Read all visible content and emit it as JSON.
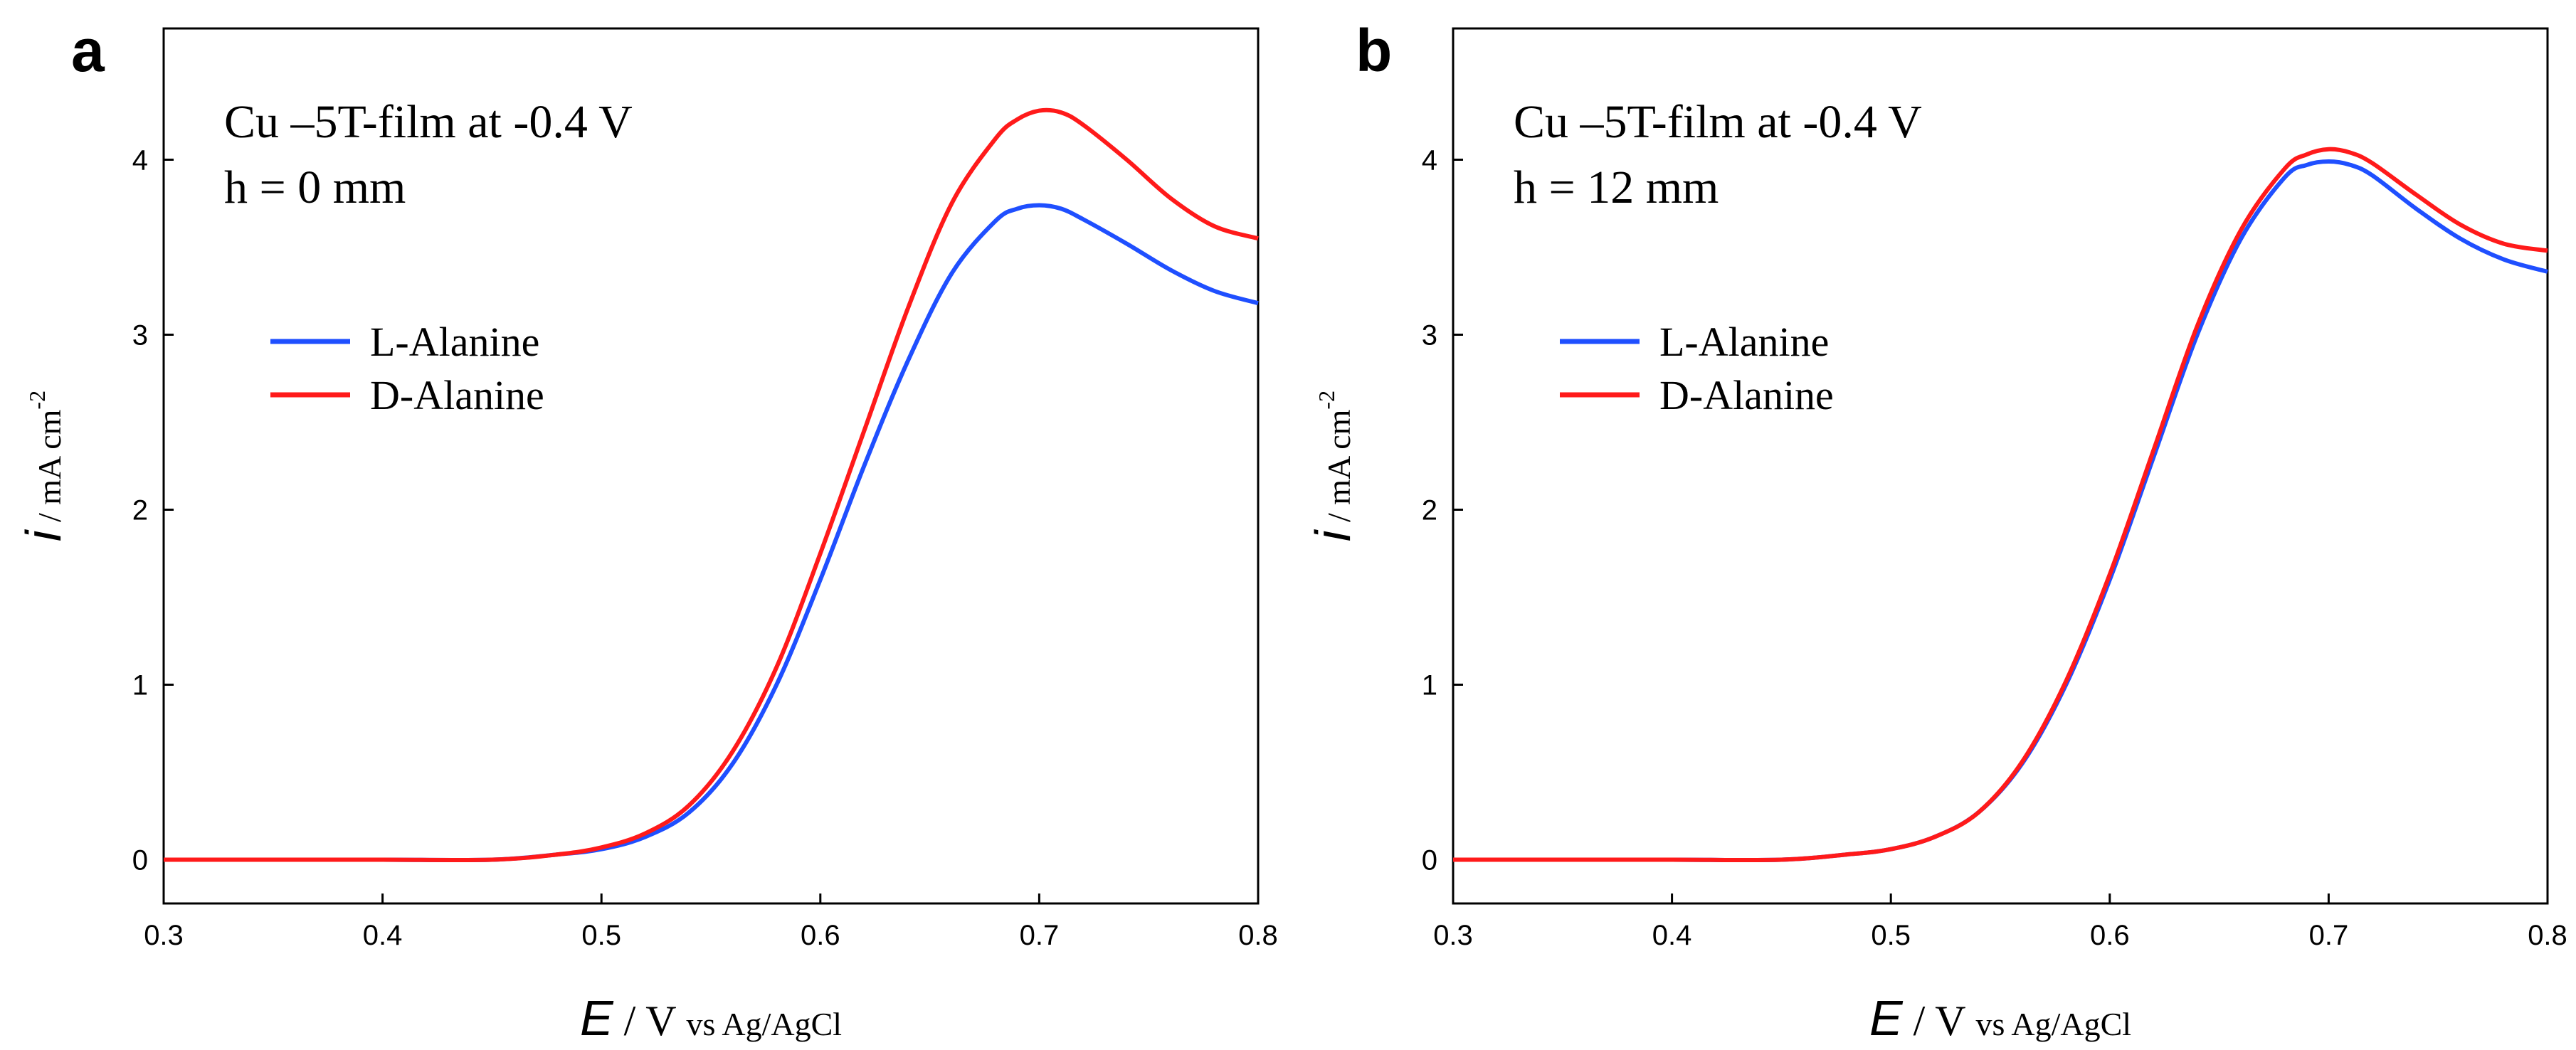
{
  "chart_data": [
    {
      "type": "line",
      "panel_label": "a",
      "annotation_line1": "Cu –5T-film  at -0.4 V",
      "annotation_line2": " h = 0 mm",
      "xlim": [
        0.3,
        0.8
      ],
      "ylim": [
        -0.25,
        4.75
      ],
      "x_ticks": [
        0.3,
        0.4,
        0.5,
        0.6,
        0.7,
        0.8
      ],
      "x_tick_labels": [
        "0.3",
        "0.4",
        "0.5",
        "0.6",
        "0.7",
        "0.8"
      ],
      "y_ticks": [
        0,
        1,
        2,
        3,
        4
      ],
      "y_tick_labels": [
        "0",
        "1",
        "2",
        "3",
        "4"
      ],
      "xlabel": {
        "symbol": "E",
        "unit": " / V ",
        "ref": "vs Ag/AgCl"
      },
      "ylabel": {
        "symbol": "i",
        "unit": " / mA cm",
        "sup": "-2"
      },
      "legend_position": "center-left",
      "series": [
        {
          "name": "L-Alanine",
          "color": "#1f4fff",
          "x": [
            0.3,
            0.35,
            0.4,
            0.45,
            0.48,
            0.5,
            0.52,
            0.54,
            0.56,
            0.58,
            0.6,
            0.62,
            0.64,
            0.66,
            0.68,
            0.69,
            0.7,
            0.71,
            0.72,
            0.74,
            0.76,
            0.78,
            0.8
          ],
          "y": [
            0.0,
            0.0,
            0.0,
            0.0,
            0.03,
            0.06,
            0.13,
            0.27,
            0.55,
            1.0,
            1.6,
            2.25,
            2.85,
            3.35,
            3.65,
            3.72,
            3.74,
            3.72,
            3.66,
            3.52,
            3.37,
            3.25,
            3.18
          ]
        },
        {
          "name": "D-Alanine",
          "color": "#ff1a1a",
          "x": [
            0.3,
            0.35,
            0.4,
            0.45,
            0.48,
            0.5,
            0.52,
            0.54,
            0.56,
            0.58,
            0.6,
            0.62,
            0.64,
            0.66,
            0.68,
            0.69,
            0.7,
            0.71,
            0.72,
            0.74,
            0.76,
            0.78,
            0.8
          ],
          "y": [
            0.0,
            0.0,
            0.0,
            0.0,
            0.03,
            0.07,
            0.15,
            0.31,
            0.62,
            1.1,
            1.75,
            2.45,
            3.15,
            3.75,
            4.12,
            4.23,
            4.28,
            4.27,
            4.2,
            4.0,
            3.78,
            3.62,
            3.55
          ]
        }
      ]
    },
    {
      "type": "line",
      "panel_label": "b",
      "annotation_line1": "Cu –5T-film  at -0.4 V",
      "annotation_line2": " h = 12 mm",
      "xlim": [
        0.3,
        0.8
      ],
      "ylim": [
        -0.25,
        4.75
      ],
      "x_ticks": [
        0.3,
        0.4,
        0.5,
        0.6,
        0.7,
        0.8
      ],
      "x_tick_labels": [
        "0.3",
        "0.4",
        "0.5",
        "0.6",
        "0.7",
        "0.8"
      ],
      "y_ticks": [
        0,
        1,
        2,
        3,
        4
      ],
      "y_tick_labels": [
        "0",
        "1",
        "2",
        "3",
        "4"
      ],
      "xlabel": {
        "symbol": "E",
        "unit": " / V ",
        "ref": "vs Ag/AgCl"
      },
      "ylabel": {
        "symbol": "i",
        "unit": " / mA cm",
        "sup": "-2"
      },
      "legend_position": "center-left",
      "series": [
        {
          "name": "L-Alanine",
          "color": "#1f4fff",
          "x": [
            0.3,
            0.35,
            0.4,
            0.45,
            0.48,
            0.5,
            0.52,
            0.54,
            0.56,
            0.58,
            0.6,
            0.62,
            0.64,
            0.66,
            0.68,
            0.69,
            0.7,
            0.71,
            0.72,
            0.74,
            0.76,
            0.78,
            0.8
          ],
          "y": [
            0.0,
            0.0,
            0.0,
            0.0,
            0.03,
            0.06,
            0.13,
            0.27,
            0.55,
            1.0,
            1.6,
            2.3,
            3.0,
            3.55,
            3.9,
            3.97,
            3.99,
            3.97,
            3.91,
            3.72,
            3.55,
            3.43,
            3.36
          ]
        },
        {
          "name": "D-Alanine",
          "color": "#ff1a1a",
          "x": [
            0.3,
            0.35,
            0.4,
            0.45,
            0.48,
            0.5,
            0.52,
            0.54,
            0.56,
            0.58,
            0.6,
            0.62,
            0.64,
            0.66,
            0.68,
            0.69,
            0.7,
            0.71,
            0.72,
            0.74,
            0.76,
            0.78,
            0.8
          ],
          "y": [
            0.0,
            0.0,
            0.0,
            0.0,
            0.03,
            0.06,
            0.13,
            0.27,
            0.56,
            1.02,
            1.63,
            2.34,
            3.05,
            3.6,
            3.95,
            4.03,
            4.06,
            4.04,
            3.98,
            3.8,
            3.63,
            3.52,
            3.48
          ]
        }
      ]
    }
  ]
}
